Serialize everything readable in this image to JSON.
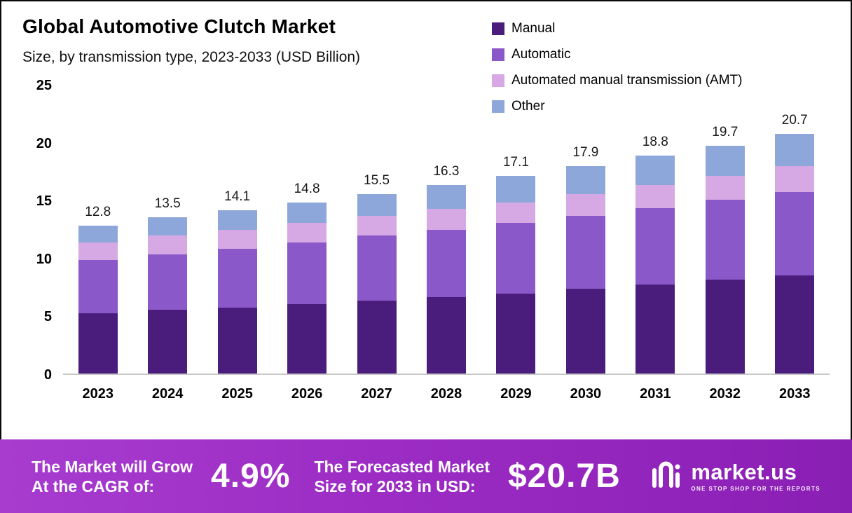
{
  "chart": {
    "title": "Global Automotive Clutch Market",
    "subtitle": "Size, by transmission type, 2023-2033 (USD Billion)"
  },
  "chart_data": {
    "type": "bar",
    "stacked": true,
    "title": "Global Automotive Clutch Market",
    "subtitle": "Size, by transmission type, 2023-2033 (USD Billion)",
    "categories": [
      "2023",
      "2024",
      "2025",
      "2026",
      "2027",
      "2028",
      "2029",
      "2030",
      "2031",
      "2032",
      "2033"
    ],
    "series": [
      {
        "name": "Manual",
        "color": "#4A1D7C",
        "values": [
          5.2,
          5.5,
          5.7,
          6.0,
          6.3,
          6.6,
          6.9,
          7.3,
          7.7,
          8.1,
          8.5
        ]
      },
      {
        "name": "Automatic",
        "color": "#8A58C8",
        "values": [
          4.6,
          4.8,
          5.1,
          5.3,
          5.6,
          5.8,
          6.1,
          6.3,
          6.6,
          6.9,
          7.2
        ]
      },
      {
        "name": "Automated manual transmission (AMT)",
        "color": "#D6A9E4",
        "values": [
          1.5,
          1.6,
          1.6,
          1.7,
          1.7,
          1.8,
          1.8,
          1.9,
          2.0,
          2.1,
          2.2
        ]
      },
      {
        "name": "Other",
        "color": "#8EA7DA",
        "values": [
          1.5,
          1.6,
          1.7,
          1.8,
          1.9,
          2.1,
          2.3,
          2.4,
          2.5,
          2.6,
          2.8
        ]
      }
    ],
    "totals": [
      12.8,
      13.5,
      14.1,
      14.8,
      15.5,
      16.3,
      17.1,
      17.9,
      18.8,
      19.7,
      20.7
    ],
    "xlabel": "",
    "ylabel": "",
    "ylim": [
      0,
      25
    ],
    "yticks": [
      0,
      5,
      10,
      15,
      20,
      25
    ],
    "legend_position": "top-right",
    "grid": false
  },
  "banner": {
    "cagr_label_line1": "The Market will Grow",
    "cagr_label_line2": "At the CAGR of:",
    "cagr_value": "4.9%",
    "forecast_label_line1": "The Forecasted Market",
    "forecast_label_line2": "Size for 2033 in USD:",
    "forecast_value": "$20.7B",
    "logo_text": "market.us",
    "logo_tagline": "One Stop Shop For The Reports"
  },
  "colors": {
    "banner_gradient_start": "#A83CCF",
    "banner_gradient_end": "#8A1FB4",
    "axis_line": "#C8C8C8"
  }
}
